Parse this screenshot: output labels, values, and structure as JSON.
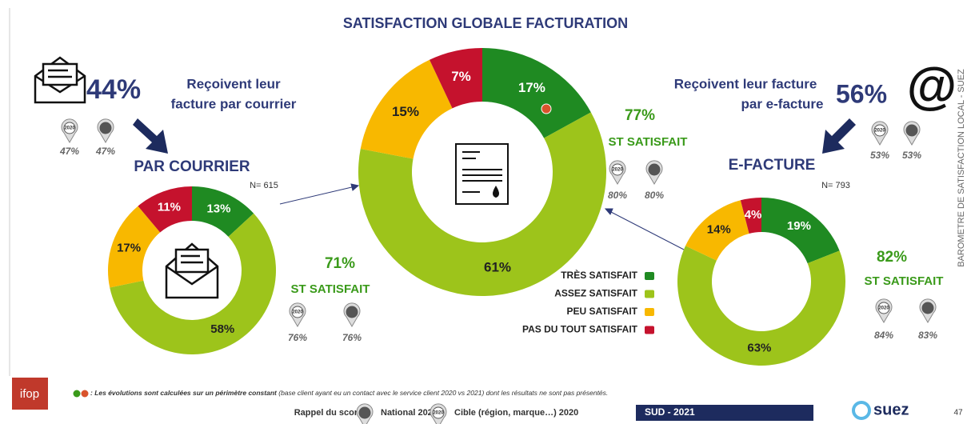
{
  "title": "SATISFACTION GLOBALE FACTURATION",
  "badge_year": "2020",
  "left": {
    "share": "44%",
    "line1": "Reçoivent leur",
    "line2": "facture par courrier",
    "benchmarks": [
      "47%",
      "47%"
    ],
    "heading": "PAR COURRIER"
  },
  "right": {
    "share": "56%",
    "line1": "Reçoivent leur facture",
    "line2": "par e-facture",
    "benchmarks": [
      "53%",
      "53%"
    ],
    "heading": "E-FACTURE",
    "icon": "@"
  },
  "side_label": "BAROMETRE DE SATISFACTION LOCAL - SUEZ",
  "footer": {
    "note_lead": ": Les évolutions sont calculées sur un périmètre constant",
    "note_rest": "(base client ayant eu un contact avec le service client 2020 vs 2021) dont les résultats ne sont pas présentés.",
    "recall": "Rappel du score :",
    "national": "National 2021",
    "target": "Cible (région, marque…) 2020",
    "region": "SUD  - 2021",
    "brand": "suez",
    "logo": "ifop",
    "page": "47"
  },
  "chart_data": [
    {
      "type": "pie",
      "values": [
        13,
        58,
        17,
        11
      ],
      "value_labels": [
        "13%",
        "58%",
        "17%",
        "11%"
      ],
      "colors": [
        "#1f8a22",
        "#9dc41b",
        "#f8b800",
        "#c5122d"
      ],
      "n_label": "N= 615",
      "st_value": "71%",
      "st_label": "ST SATISFAIT",
      "benchmarks": [
        "76%",
        "76%"
      ],
      "icon": "@"
    },
    {
      "type": "pie",
      "categories": [
        "TRÈS SATISFAIT",
        "ASSEZ SATISFAIT",
        "PEU SATISFAIT",
        "PAS DU TOUT SATISFAIT"
      ],
      "values": [
        17,
        61,
        15,
        7
      ],
      "value_labels": [
        "17%",
        "61%",
        "15%",
        "7%"
      ],
      "colors": [
        "#1f8a22",
        "#9dc41b",
        "#f8b800",
        "#c5122d"
      ],
      "st_value": "77%",
      "st_label": "ST SATISFAIT",
      "benchmarks": [
        "80%",
        "80%"
      ]
    },
    {
      "type": "pie",
      "values": [
        19,
        63,
        14,
        4
      ],
      "value_labels": [
        "19%",
        "63%",
        "14%",
        "4%"
      ],
      "colors": [
        "#1f8a22",
        "#9dc41b",
        "#f8b800",
        "#c5122d"
      ],
      "n_label": "N= 793",
      "st_value": "82%",
      "st_label": "ST SATISFAIT",
      "benchmarks": [
        "84%",
        "83%"
      ]
    }
  ]
}
